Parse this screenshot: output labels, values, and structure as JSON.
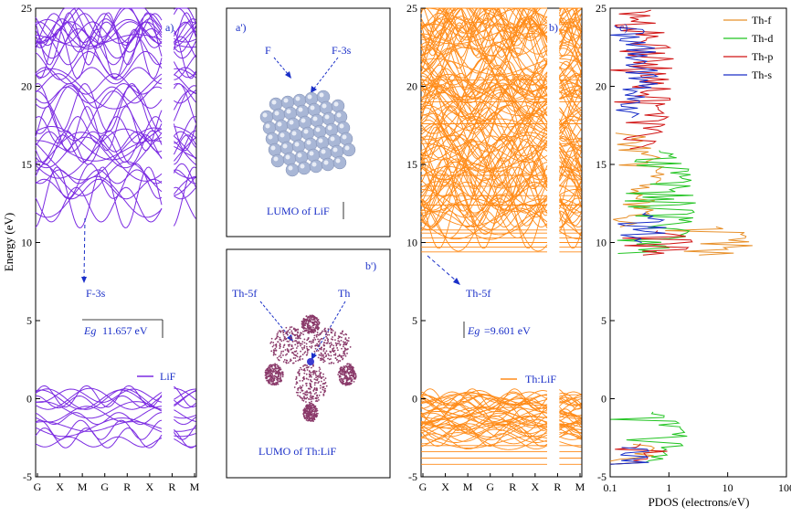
{
  "chart_data": [
    {
      "type": "line",
      "panel_label": "a)",
      "ylabel": "Energy (eV)",
      "ylim": [
        -5,
        25
      ],
      "yticks": [
        -5,
        0,
        5,
        10,
        15,
        20,
        25
      ],
      "k_labels": [
        "G",
        "X",
        "M",
        "G",
        "R",
        "X",
        "R",
        "M"
      ],
      "color": "#7b2be2",
      "legend": "LiF",
      "annotation": "F-3s",
      "gap_text": "Eg=11.657 eV"
    },
    {
      "type": "diagram",
      "panel_label": "a')",
      "labels": [
        "F",
        "F-3s"
      ],
      "caption": "LUMO of LiF"
    },
    {
      "type": "diagram",
      "panel_label": "b')",
      "labels": [
        "Th-5f",
        "Th"
      ],
      "caption": "LUMO of Th:LiF"
    },
    {
      "type": "line",
      "panel_label": "b)",
      "ylim": [
        -5,
        25
      ],
      "yticks": [
        -5,
        0,
        5,
        10,
        15,
        20,
        25
      ],
      "k_labels": [
        "G",
        "X",
        "M",
        "G",
        "R",
        "X",
        "R",
        "M"
      ],
      "color": "#ff8c1a",
      "legend": "Th:LiF",
      "annotation": "Th-5f",
      "gap_text": "Eg=9.601 eV"
    },
    {
      "type": "line",
      "panel_label": "c)",
      "xlabel": "PDOS (electrons/eV)",
      "xscale": "log",
      "xlim": [
        0.1,
        100
      ],
      "xticks": [
        "0.1",
        "1",
        "10",
        "100"
      ],
      "ylim": [
        -5,
        25
      ],
      "yticks": [
        -5,
        0,
        5,
        10,
        15,
        20,
        25
      ],
      "series": [
        {
          "name": "Th-f",
          "color": "#e8902a"
        },
        {
          "name": "Th-d",
          "color": "#22c422"
        },
        {
          "name": "Th-p",
          "color": "#d11515"
        },
        {
          "name": "Th-s",
          "color": "#1a2fc8"
        }
      ]
    }
  ],
  "labels": {
    "a_panel": "a)",
    "b_panel": "b)",
    "c_panel": "c)",
    "a2_panel": "a')",
    "b2_panel": "b')",
    "ylabel": "Energy (eV)",
    "xlabel_pdos": "PDOS (electrons/eV)",
    "lif_legend": "LiF",
    "thlif_legend": "Th:LiF",
    "f3s": "F-3s",
    "th5f": "Th-5f",
    "eg_lif_sym": "Eg",
    "eg_lif_val": "11.657 eV",
    "eg_th_sym": "Eg",
    "eg_th_val": "=9.601 eV",
    "f_label": "F",
    "f3s_label": "F-3s",
    "lumo_lif": "LUMO of LiF",
    "th5f_label": "Th-5f",
    "th_label": "Th",
    "lumo_thlif": "LUMO of Th:LiF"
  }
}
